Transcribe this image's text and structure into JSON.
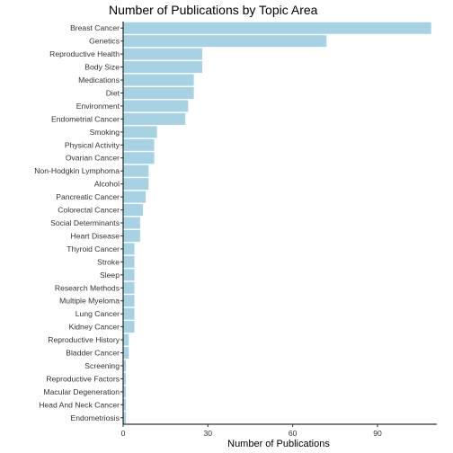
{
  "chart_data": {
    "type": "bar",
    "orientation": "horizontal",
    "title": "Number of Publications by Topic Area",
    "xlabel": "Number of Publications",
    "ylabel": "",
    "xlim": [
      0,
      111
    ],
    "xticks": [
      0,
      30,
      60,
      90
    ],
    "grid": false,
    "bar_color": "#A6D2E3",
    "categories": [
      "Breast Cancer",
      "Genetics",
      "Reproductive Health",
      "Body Size",
      "Medications",
      "Diet",
      "Environment",
      "Endometrial Cancer",
      "Smoking",
      "Physical Activity",
      "Ovarian Cancer",
      "Non-Hodgkin Lymphoma",
      "Alcohol",
      "Pancreatic Cancer",
      "Colorectal Cancer",
      "Social Determinants",
      "Heart Disease",
      "Thyroid Cancer",
      "Stroke",
      "Sleep",
      "Research Methods",
      "Multiple Myeloma",
      "Lung Cancer",
      "Kidney Cancer",
      "Reproductive History",
      "Bladder Cancer",
      "Screening",
      "Reproductive Factors",
      "Macular Degeneration",
      "Head And Neck Cancer",
      "Endometriosis"
    ],
    "values": [
      109,
      72,
      28,
      28,
      25,
      25,
      23,
      22,
      12,
      11,
      11,
      9,
      9,
      8,
      7,
      6,
      6,
      4,
      4,
      4,
      4,
      4,
      4,
      4,
      2,
      2,
      1,
      1,
      1,
      1,
      1
    ]
  }
}
